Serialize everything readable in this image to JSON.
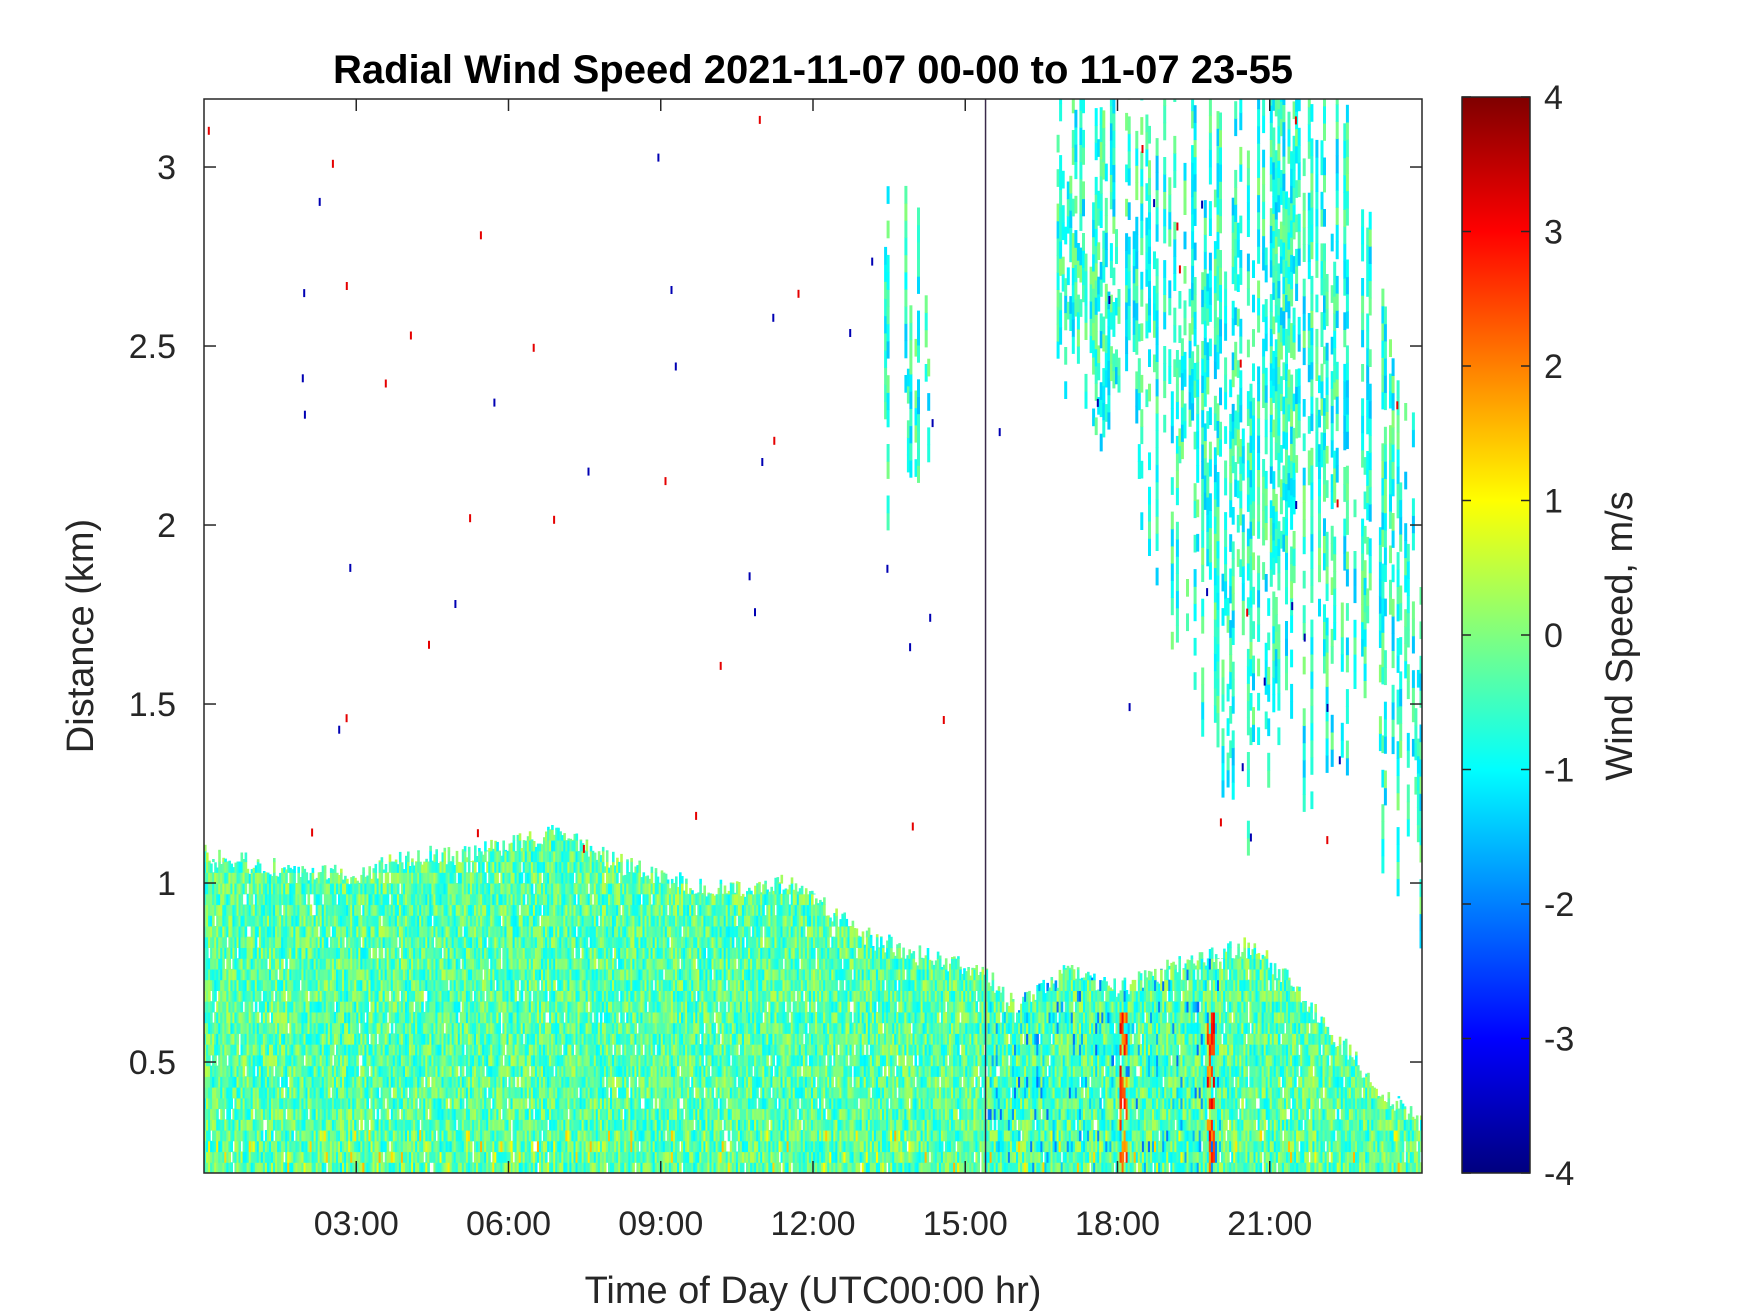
{
  "chart_data": {
    "type": "heatmap",
    "title": "Radial Wind Speed 2021-11-07 00-00 to 11-07 23-55",
    "xlabel": "Time of Day (UTC00:00 hr)",
    "ylabel": "Distance (km)",
    "x_unit": "hour",
    "xlim": [
      0,
      24
    ],
    "ylim": [
      0.19,
      3.19
    ],
    "x_ticks": [
      3,
      6,
      9,
      12,
      15,
      18,
      21
    ],
    "x_tick_labels": [
      "03:00",
      "06:00",
      "09:00",
      "12:00",
      "15:00",
      "18:00",
      "21:00"
    ],
    "y_ticks": [
      0.5,
      1,
      1.5,
      2,
      2.5,
      3
    ],
    "y_tick_labels": [
      "0.5",
      "1",
      "1.5",
      "2",
      "2.5",
      "3"
    ],
    "vertical_line_x": 15.4,
    "colorbar": {
      "label": "Wind Speed, m/s",
      "colormap": "jet",
      "range": [
        -4,
        4
      ],
      "ticks": [
        4,
        3,
        2,
        1,
        0,
        -1,
        -2,
        -3,
        -4
      ],
      "tick_labels": [
        "4",
        "3",
        "2",
        "1",
        "0",
        "-1",
        "-2",
        "-3",
        "-4"
      ]
    },
    "boundary_layer_top_km": {
      "x": [
        0,
        1,
        2,
        3,
        4,
        5,
        6,
        6.7,
        7.5,
        8,
        9,
        10,
        11,
        11.5,
        12,
        13,
        14,
        15,
        15.4,
        16,
        17,
        18,
        19,
        20,
        20.5,
        21,
        22,
        22.7,
        23.2,
        24
      ],
      "y": [
        1.08,
        1.05,
        1.03,
        1.02,
        1.07,
        1.08,
        1.1,
        1.14,
        1.1,
        1.06,
        1.02,
        0.98,
        0.98,
        1.0,
        0.96,
        0.85,
        0.8,
        0.76,
        0.74,
        0.65,
        0.75,
        0.7,
        0.76,
        0.8,
        0.82,
        0.78,
        0.62,
        0.5,
        0.42,
        0.32
      ]
    },
    "upper_plume_km": {
      "x": [
        16.8,
        17.5,
        18.5,
        19.5,
        20.5,
        21.5,
        22.5,
        23.5,
        24
      ],
      "top": [
        3.19,
        3.19,
        3.19,
        3.19,
        3.19,
        3.19,
        3.19,
        2.4,
        2.2
      ],
      "bottom": [
        2.3,
        2.2,
        1.9,
        1.4,
        1.05,
        1.15,
        1.2,
        0.95,
        0.75
      ]
    },
    "thin_plume_km": {
      "x": [
        13.4,
        14.3
      ],
      "top": [
        2.9,
        2.9
      ],
      "bottom": [
        1.7,
        2.2
      ]
    },
    "mean_speed_m_s": 0.0,
    "cloud_base_event_x": [
      18.1,
      19.8
    ]
  }
}
